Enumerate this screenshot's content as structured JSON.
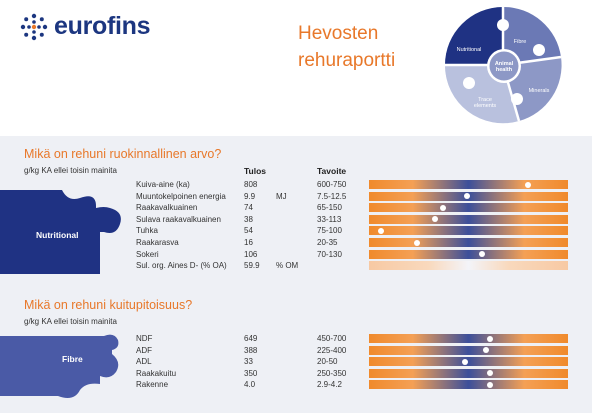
{
  "brand": {
    "name": "eurofins",
    "color": "#1c3680",
    "accent": "#e8782a"
  },
  "report": {
    "title_line1": "Hevosten",
    "title_line2": "rehuraportti"
  },
  "wheel": {
    "center_line1": "Animal",
    "center_line2": "health",
    "segments": [
      "Fibre",
      "Minerals",
      "Trace",
      "elements",
      "Nutritional"
    ]
  },
  "nutrition": {
    "title": "Mikä on rehuni ruokinnallinen arvo?",
    "subtitle": "g/kg KA ellei toisin mainita",
    "col_result": "Tulos",
    "col_target": "Tavoite",
    "puzzle_label": "Nutritional",
    "rows": [
      {
        "name": "Kuiva-aine (ka)",
        "value": "808",
        "unit": "",
        "target": "600-750",
        "marker": 0.8
      },
      {
        "name": "Muuntokelpoinen energia",
        "value": "9.9",
        "unit": "MJ",
        "target": "7.5-12.5",
        "marker": 0.49
      },
      {
        "name": "Raakavalkuainen",
        "value": "74",
        "unit": "",
        "target": "65-150",
        "marker": 0.37
      },
      {
        "name": "Sulava raakavalkuainen",
        "value": "38",
        "unit": "",
        "target": "33-113",
        "marker": 0.33
      },
      {
        "name": "Tuhka",
        "value": "54",
        "unit": "",
        "target": "75-100",
        "marker": 0.06
      },
      {
        "name": "Raakarasva",
        "value": "16",
        "unit": "",
        "target": "20-35",
        "marker": 0.24
      },
      {
        "name": "Sokeri",
        "value": "106",
        "unit": "",
        "target": "70-130",
        "marker": 0.57
      },
      {
        "name": "Sul. org. Aines D- (% OA)",
        "value": "59.9",
        "unit": "% OM",
        "target": "",
        "marker": null
      }
    ]
  },
  "fibre": {
    "title": "Mikä on rehuni kuitupitoisuus?",
    "subtitle": "g/kg KA ellei toisin mainita",
    "puzzle_label": "Fibre",
    "rows": [
      {
        "name": "NDF",
        "value": "649",
        "unit": "",
        "target": "450-700",
        "marker": 0.61
      },
      {
        "name": "ADF",
        "value": "388",
        "unit": "",
        "target": "225-400",
        "marker": 0.59
      },
      {
        "name": "ADL",
        "value": "33",
        "unit": "",
        "target": "20-50",
        "marker": 0.48
      },
      {
        "name": "Raakakuitu",
        "value": "350",
        "unit": "",
        "target": "250-350",
        "marker": 0.61
      },
      {
        "name": "Rakenne",
        "value": "4.0",
        "unit": "",
        "target": "2.9-4.2",
        "marker": 0.61
      }
    ]
  }
}
